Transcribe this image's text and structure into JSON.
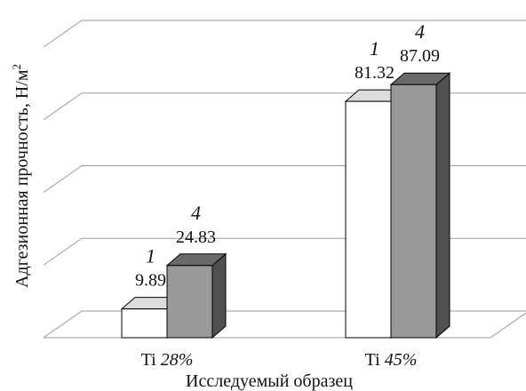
{
  "chart_data": {
    "type": "bar",
    "three_d": true,
    "categories": [
      "Ti 28%",
      "Ti 45%"
    ],
    "series": [
      {
        "name": "1",
        "values": [
          9.89,
          81.32
        ]
      },
      {
        "name": "4",
        "values": [
          24.83,
          87.09
        ]
      }
    ],
    "value_labels": [
      [
        "9.89",
        "81.32"
      ],
      [
        "24.83",
        "87.09"
      ]
    ],
    "xlabel": "Исследуемый образец",
    "ylabel": "Адгезионная прочность, Н/м",
    "ylabel_superscript": "2",
    "ylim": [
      0,
      100
    ],
    "grid": true,
    "legend": "none",
    "colors": {
      "series_front": [
        "#ffffff",
        "#999999"
      ],
      "series_top": [
        "#dcdcdc",
        "#6a6a6a"
      ],
      "series_side": [
        "#ffffff",
        "#505050"
      ],
      "grid": "#9a9a9a",
      "outline": "#000000"
    }
  }
}
